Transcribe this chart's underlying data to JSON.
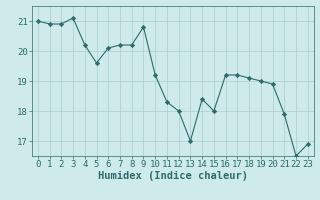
{
  "x": [
    0,
    1,
    2,
    3,
    4,
    5,
    6,
    7,
    8,
    9,
    10,
    11,
    12,
    13,
    14,
    15,
    16,
    17,
    18,
    19,
    20,
    21,
    22,
    23
  ],
  "y": [
    21.0,
    20.9,
    20.9,
    21.1,
    20.2,
    19.6,
    20.1,
    20.2,
    20.2,
    20.8,
    19.2,
    18.3,
    18.0,
    17.0,
    18.4,
    18.0,
    19.2,
    19.2,
    19.1,
    19.0,
    18.9,
    17.9,
    16.5,
    16.9
  ],
  "xlabel": "Humidex (Indice chaleur)",
  "ylim": [
    16.5,
    21.5
  ],
  "xlim": [
    -0.5,
    23.5
  ],
  "yticks": [
    17,
    18,
    19,
    20,
    21
  ],
  "xticks": [
    0,
    1,
    2,
    3,
    4,
    5,
    6,
    7,
    8,
    9,
    10,
    11,
    12,
    13,
    14,
    15,
    16,
    17,
    18,
    19,
    20,
    21,
    22,
    23
  ],
  "line_color": "#2e6b6b",
  "marker_color": "#2e6b6b",
  "bg_color": "#ceeaea",
  "grid_color": "#aacece",
  "tick_color": "#2e6b6b",
  "label_color": "#2e6b6b",
  "font_size": 6.5,
  "xlabel_fontsize": 7.5
}
